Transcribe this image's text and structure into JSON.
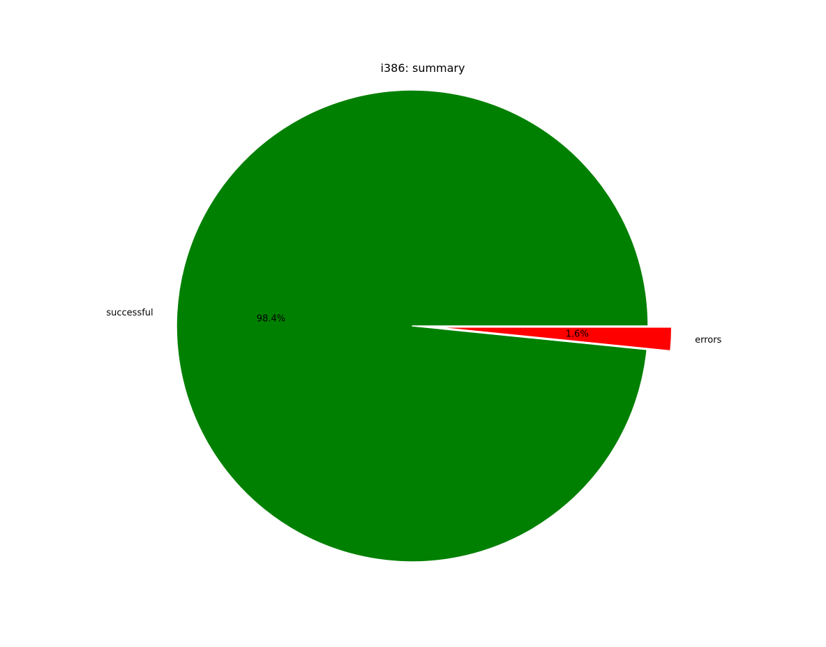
{
  "chart_data": {
    "type": "pie",
    "title": "i386: summary",
    "slices": [
      {
        "label": "successful",
        "percent": 98.4,
        "percent_label": "98.4%",
        "color": "#008000",
        "exploded": false
      },
      {
        "label": "errors",
        "percent": 1.6,
        "percent_label": "1.6%",
        "color": "#ff0000",
        "exploded": true
      }
    ],
    "start_angle_deg": 0,
    "direction": "counterclockwise"
  }
}
